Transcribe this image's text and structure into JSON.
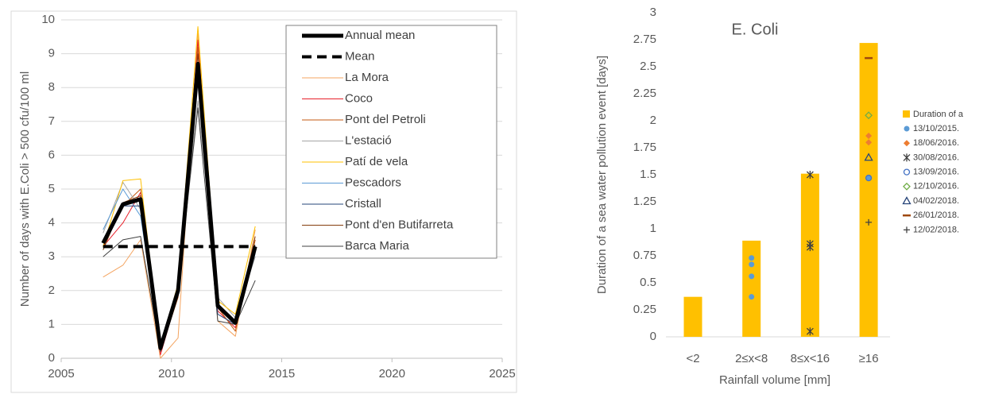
{
  "chart_data": [
    {
      "type": "line",
      "ylabel": "Number of days with E.Coli > 500 cfu/100 ml",
      "x": [
        2006.9,
        2007.8,
        2008.6,
        2009.5,
        2010.3,
        2011.2,
        2012.1,
        2012.9,
        2013.8
      ],
      "xlim": [
        2005,
        2025
      ],
      "xticks": [
        2005,
        2010,
        2015,
        2020,
        2025
      ],
      "ylim": [
        0,
        10
      ],
      "yticks": [
        0,
        1,
        2,
        3,
        4,
        5,
        6,
        7,
        8,
        9,
        10
      ],
      "grid": true,
      "series": [
        {
          "name": "Annual mean",
          "color": "#000000",
          "width": 5,
          "dash": false,
          "values": [
            3.4,
            4.55,
            4.7,
            0.3,
            2.0,
            8.7,
            1.55,
            1.05,
            3.3
          ]
        },
        {
          "name": "Mean",
          "color": "#000000",
          "width": 4,
          "dash": true,
          "values": [
            3.3,
            3.3,
            3.3,
            3.3,
            3.3,
            3.3,
            3.3,
            3.3,
            3.3
          ]
        },
        {
          "name": "La Mora",
          "color": "#f4a460",
          "width": 1,
          "dash": false,
          "values": [
            2.4,
            2.75,
            3.5,
            0.0,
            0.6,
            9.6,
            1.1,
            0.65,
            3.8
          ]
        },
        {
          "name": "Coco",
          "color": "#e8202a",
          "width": 1,
          "dash": false,
          "values": [
            3.3,
            4.0,
            4.9,
            0.1,
            1.9,
            9.4,
            1.4,
            0.9,
            3.3
          ]
        },
        {
          "name": "Pont del Petroli",
          "color": "#c55a11",
          "width": 1,
          "dash": false,
          "values": [
            3.3,
            4.5,
            5.0,
            0.2,
            1.8,
            9.2,
            1.5,
            0.8,
            3.5
          ]
        },
        {
          "name": "L'estació",
          "color": "#a5a5a5",
          "width": 1,
          "dash": false,
          "values": [
            3.7,
            5.2,
            4.4,
            0.4,
            2.2,
            7.6,
            1.8,
            1.2,
            3.0
          ]
        },
        {
          "name": "Patí de vela",
          "color": "#ffc000",
          "width": 1,
          "dash": false,
          "values": [
            3.3,
            5.25,
            5.3,
            0.3,
            2.2,
            9.8,
            1.7,
            1.3,
            3.9
          ]
        },
        {
          "name": "Pescadors",
          "color": "#5b9bd5",
          "width": 1,
          "dash": false,
          "values": [
            3.8,
            5.0,
            4.2,
            0.4,
            2.1,
            8.5,
            1.5,
            1.0,
            3.1
          ]
        },
        {
          "name": "Cristall",
          "color": "#264478",
          "width": 1,
          "dash": false,
          "values": [
            3.5,
            4.5,
            4.5,
            0.3,
            2.0,
            8.3,
            1.3,
            1.0,
            3.3
          ]
        },
        {
          "name": "Pont d'en Butifarreta",
          "color": "#843c0c",
          "width": 1,
          "dash": false,
          "values": [
            3.2,
            4.6,
            4.8,
            0.3,
            1.9,
            9.0,
            1.6,
            1.0,
            3.6
          ]
        },
        {
          "name": "Barca Maria",
          "color": "#404040",
          "width": 1,
          "dash": false,
          "values": [
            3.0,
            3.5,
            3.6,
            0.2,
            2.1,
            7.4,
            1.1,
            1.0,
            2.3
          ]
        }
      ]
    },
    {
      "type": "bar",
      "title": "E. Coli",
      "xlabel": "Rainfall volume [mm]",
      "ylabel": "Duration of a sea water pollution event [days]",
      "categories": [
        "<2",
        "2≤x<8",
        "8≤x<16",
        "≥16"
      ],
      "ylim": [
        0,
        3
      ],
      "yticks": [
        0,
        0.25,
        0.5,
        0.75,
        1,
        1.25,
        1.5,
        1.75,
        2,
        2.25,
        2.5,
        2.75,
        3
      ],
      "grid": false,
      "bar_series": {
        "name": "Duration of a",
        "color": "#ffc000",
        "values": [
          0.37,
          0.89,
          1.51,
          2.72
        ]
      },
      "series": [
        {
          "name": "13/10/2015.",
          "color": "#5b9bd5",
          "marker": "circle",
          "values": [
            [],
            [
              0.73,
              0.67,
              0.56,
              0.37
            ],
            [],
            [
              1.47
            ]
          ]
        },
        {
          "name": "18/06/2016.",
          "color": "#ed7d31",
          "marker": "diamond",
          "values": [
            [],
            [],
            [],
            [
              1.86,
              1.8
            ]
          ]
        },
        {
          "name": "30/08/2016.",
          "color": "#404040",
          "marker": "star",
          "values": [
            [],
            [],
            [
              1.5,
              0.86,
              0.83,
              0.05
            ],
            []
          ]
        },
        {
          "name": "13/09/2016.",
          "color": "#4472c4",
          "marker": "open-circle",
          "values": [
            [],
            [],
            [],
            [
              1.47
            ]
          ]
        },
        {
          "name": "12/10/2016.",
          "color": "#70ad47",
          "marker": "open-diamond",
          "values": [
            [],
            [],
            [],
            [
              2.05
            ]
          ]
        },
        {
          "name": "04/02/2018.",
          "color": "#264478",
          "marker": "open-triangle",
          "values": [
            [],
            [],
            [],
            [
              1.66
            ]
          ]
        },
        {
          "name": "26/01/2018.",
          "color": "#9e480e",
          "marker": "dash",
          "values": [
            [],
            [],
            [],
            [
              2.58
            ]
          ]
        },
        {
          "name": "12/02/2018.",
          "color": "#404040",
          "marker": "plus",
          "values": [
            [],
            [],
            [],
            [
              1.06
            ]
          ]
        }
      ]
    }
  ]
}
